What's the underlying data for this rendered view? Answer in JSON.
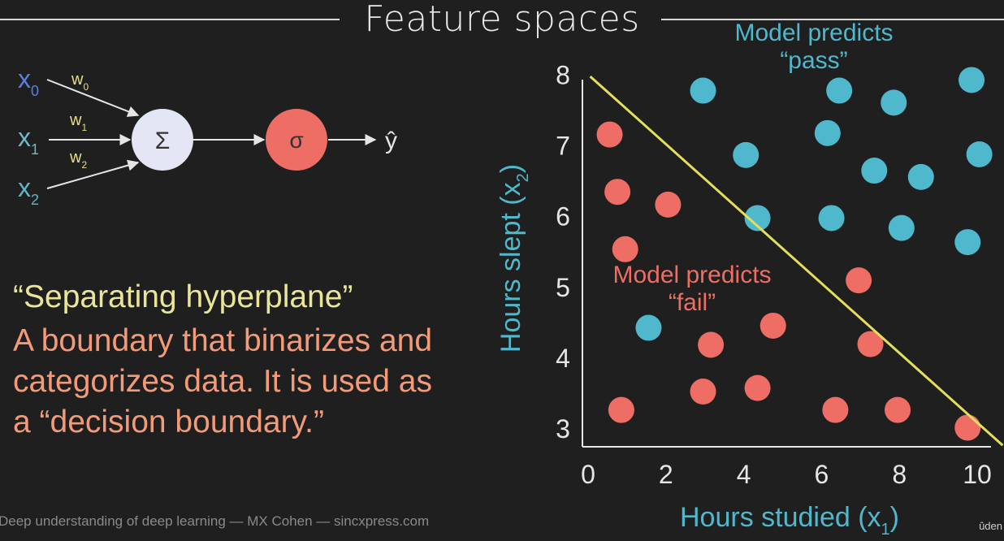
{
  "slide": {
    "title": "Feature spaces",
    "footer": "Deep understanding of deep learning — MX Cohen — sincxpress.com",
    "corner_mark": "ûden"
  },
  "neuron": {
    "inputs": [
      "x",
      "x",
      "x"
    ],
    "input_subscripts": [
      "0",
      "1",
      "2"
    ],
    "weights": [
      "w",
      "w",
      "w"
    ],
    "weight_subscripts": [
      "0",
      "1",
      "2"
    ],
    "sum_symbol": "Σ",
    "activation_symbol": "σ",
    "output": "ŷ",
    "colors": {
      "x0": "#5b7fe0",
      "x1": "#6fb9c9",
      "x2": "#5fb6c9",
      "weights": "#e8df8a",
      "sum": "#e4e6f5",
      "activation": "#ee6e66"
    }
  },
  "text": {
    "quote": "“Separating hyperplane”",
    "description_lines": [
      "A boundary that binarizes and",
      "categorizes data. It is used as",
      "a “decision boundary.”"
    ]
  },
  "chart_data": {
    "type": "scatter",
    "title": "",
    "xlabel": "Hours studied (x",
    "xlabel_subscript": "1",
    "xlabel_close": ")",
    "ylabel": "Hours slept (x",
    "ylabel_subscript": "2",
    "ylabel_close": ")",
    "xlim": [
      0,
      10.5
    ],
    "ylim": [
      2.75,
      8.05
    ],
    "xticks": [
      0,
      2,
      4,
      6,
      8,
      10
    ],
    "yticks": [
      3,
      4,
      5,
      6,
      7,
      8
    ],
    "series": [
      {
        "color": "#4fb8cc",
        "points": [
          [
            3.1,
            7.78
          ],
          [
            6.6,
            7.78
          ],
          [
            10,
            7.93
          ],
          [
            8,
            7.61
          ],
          [
            6.3,
            7.18
          ],
          [
            4.2,
            6.87
          ],
          [
            10.2,
            6.88
          ],
          [
            7.5,
            6.65
          ],
          [
            8.7,
            6.56
          ],
          [
            4.5,
            5.98
          ],
          [
            6.4,
            5.98
          ],
          [
            8.2,
            5.84
          ],
          [
            9.9,
            5.64
          ],
          [
            1.7,
            4.43
          ]
        ]
      },
      {
        "color": "#ee6e66",
        "points": [
          [
            0.7,
            7.16
          ],
          [
            0.9,
            6.35
          ],
          [
            2.2,
            6.17
          ],
          [
            1.1,
            5.54
          ],
          [
            7.1,
            5.1
          ],
          [
            4.9,
            4.46
          ],
          [
            3.3,
            4.19
          ],
          [
            7.4,
            4.2
          ],
          [
            3.1,
            3.53
          ],
          [
            4.5,
            3.58
          ],
          [
            1,
            3.27
          ],
          [
            6.5,
            3.27
          ],
          [
            8.1,
            3.27
          ],
          [
            9.9,
            3.02
          ]
        ]
      }
    ],
    "boundary": {
      "from": [
        0.2,
        7.98
      ],
      "to": [
        10.8,
        2.77
      ],
      "color": "#e2e05a"
    },
    "annotations": [
      {
        "lines": [
          "Model predicts",
          "“pass”"
        ],
        "color": "#4fb8cc"
      },
      {
        "lines": [
          "Model predicts",
          "“fail”"
        ],
        "color": "#ee6e66"
      }
    ]
  }
}
